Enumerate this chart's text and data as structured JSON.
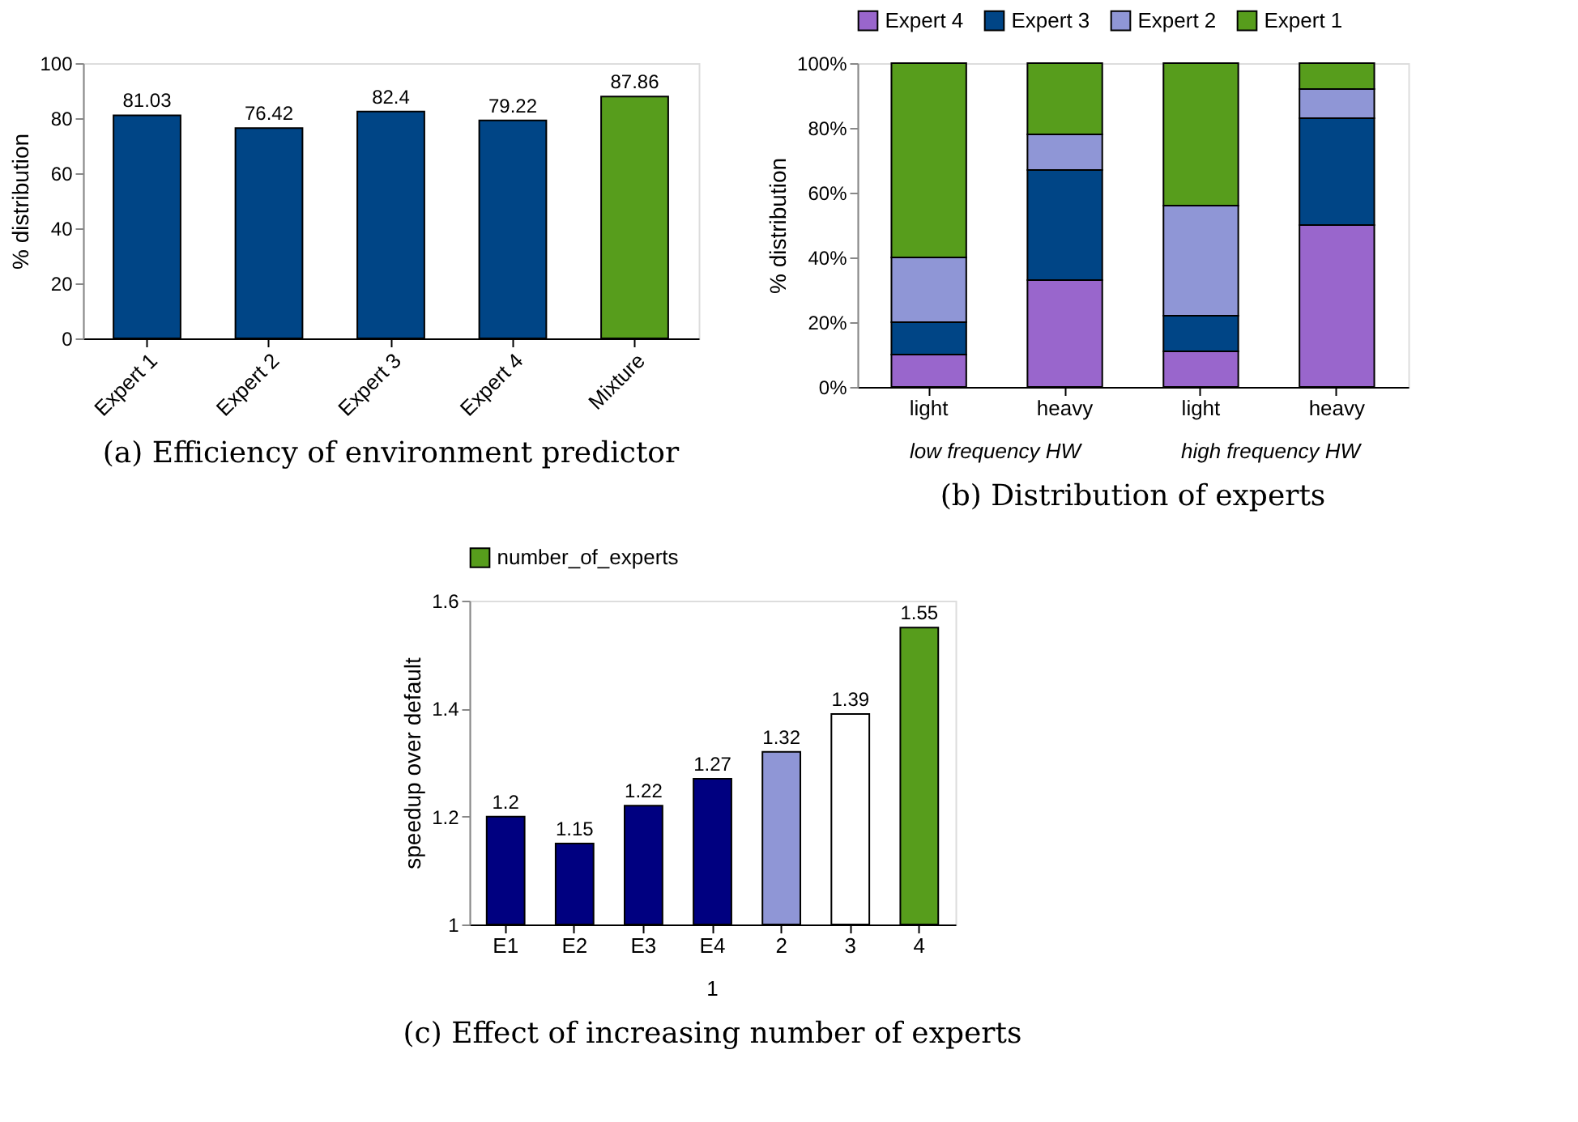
{
  "chart_data": [
    {
      "type": "bar",
      "title": "(a) Efficiency of environment predictor",
      "ylabel": "% distribution",
      "categories": [
        "Expert 1",
        "Expert 2",
        "Expert 3",
        "Expert 4",
        "Mixture"
      ],
      "values": [
        81.03,
        76.42,
        82.4,
        79.22,
        87.86
      ],
      "colors": [
        "#004586",
        "#004586",
        "#004586",
        "#004586",
        "#579d1c"
      ],
      "ylim": [
        0,
        100
      ],
      "yticks": [
        0,
        20,
        40,
        60,
        80,
        100
      ],
      "data_labels": true,
      "grid": false,
      "legend": false
    },
    {
      "type": "bar",
      "title": "(b) Distribution of experts",
      "ylabel": "% distribution",
      "categories": [
        "light",
        "heavy",
        "light",
        "heavy"
      ],
      "stacked": true,
      "series": [
        {
          "name": "Expert 4",
          "color": "#9966cc",
          "values": [
            10,
            33,
            11,
            50
          ]
        },
        {
          "name": "Expert 3",
          "color": "#004586",
          "values": [
            10,
            34,
            11,
            33
          ]
        },
        {
          "name": "Expert 2",
          "color": "#8f96d6",
          "values": [
            20,
            11,
            34,
            9
          ]
        },
        {
          "name": "Expert 1",
          "color": "#579d1c",
          "values": [
            60,
            22,
            44,
            8
          ]
        }
      ],
      "ylim": [
        0,
        100
      ],
      "yticks": [
        {
          "value": 0,
          "label": "0%"
        },
        {
          "value": 20,
          "label": "20%"
        },
        {
          "value": 40,
          "label": "40%"
        },
        {
          "value": 60,
          "label": "60%"
        },
        {
          "value": 80,
          "label": "80%"
        },
        {
          "value": 100,
          "label": "100%"
        }
      ],
      "legend": "top",
      "grid": false,
      "annotations": [
        "low frequency HW",
        "high frequency HW"
      ]
    },
    {
      "type": "bar",
      "title": "(c) Effect of increasing number of experts",
      "ylabel": "speedup over default",
      "categories": [
        "E1",
        "E2",
        "E3",
        "E4",
        "2",
        "3",
        "4"
      ],
      "series": [
        {
          "name": "number_of_experts",
          "color": "#579d1c",
          "values": [
            1.2,
            1.15,
            1.22,
            1.27,
            1.32,
            1.39,
            1.55
          ],
          "colors": [
            "#000080",
            "#000080",
            "#000080",
            "#000080",
            "#8f96d6",
            "#ffffff",
            "#579d1c"
          ]
        }
      ],
      "ylim": [
        1,
        1.6
      ],
      "yticks": [
        1,
        1.2,
        1.4,
        1.6
      ],
      "data_labels": true,
      "legend": "top",
      "grid": false,
      "annotations": [
        "1"
      ]
    }
  ]
}
